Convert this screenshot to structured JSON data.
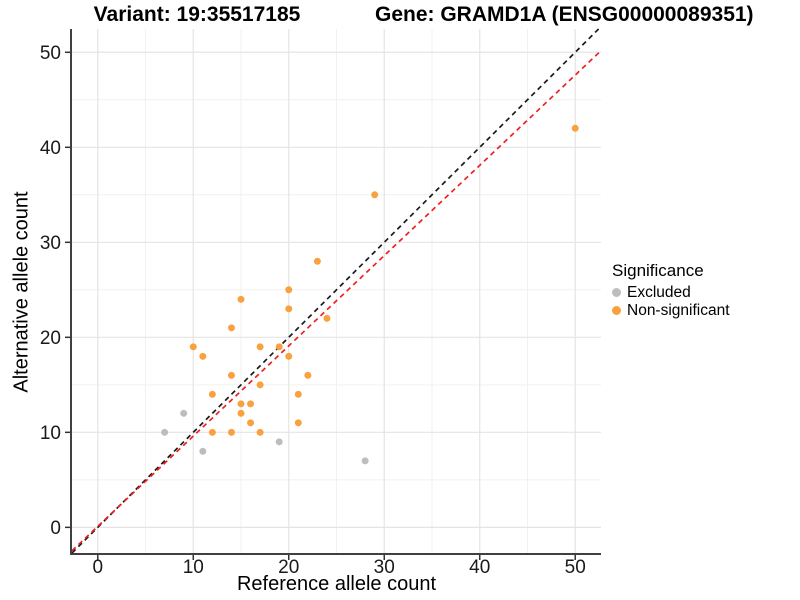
{
  "header": {
    "title_left": "Variant: 19:35517185",
    "title_right": "Gene: GRAMD1A (ENSG00000089351)"
  },
  "axes": {
    "x_label": "Reference allele count",
    "y_label": "Alternative allele count"
  },
  "legend": {
    "title": "Significance",
    "items": [
      {
        "label": "Excluded",
        "color": "#BDBDBD"
      },
      {
        "label": "Non-significant",
        "color": "#F8A13E"
      }
    ]
  },
  "chart_data": {
    "type": "scatter",
    "xlabel": "Reference allele count",
    "ylabel": "Alternative allele count",
    "xlim": [
      -2.7,
      52.7
    ],
    "ylim": [
      -2.7,
      52.45
    ],
    "x_ticks": [
      0,
      10,
      20,
      30,
      40,
      50
    ],
    "y_ticks": [
      0,
      10,
      20,
      30,
      40,
      50
    ],
    "x_minor_ticks": [
      5,
      15,
      25,
      35,
      45
    ],
    "y_minor_ticks": [
      5,
      15,
      25,
      35,
      45
    ],
    "grid": {
      "major_color": "#E4E4E4",
      "minor_color": "#F1F1F1",
      "grid_on": true
    },
    "axis_line_color": "#404040",
    "tick_label_color": "#1A1A1A",
    "legend_position": "right",
    "series": [
      {
        "name": "Excluded",
        "color": "#BDBDBD",
        "points": [
          [
            7,
            10
          ],
          [
            9,
            12
          ],
          [
            11,
            8
          ],
          [
            19,
            9
          ],
          [
            28,
            7
          ]
        ]
      },
      {
        "name": "Non-significant",
        "color": "#F8A13E",
        "points": [
          [
            10,
            19
          ],
          [
            11,
            18
          ],
          [
            12,
            10
          ],
          [
            12,
            14
          ],
          [
            14,
            10
          ],
          [
            14,
            16
          ],
          [
            14,
            21
          ],
          [
            15,
            12
          ],
          [
            15,
            13
          ],
          [
            15,
            24
          ],
          [
            16,
            11
          ],
          [
            16,
            13
          ],
          [
            17,
            10
          ],
          [
            17,
            15
          ],
          [
            17,
            19
          ],
          [
            19,
            19
          ],
          [
            20,
            18
          ],
          [
            20,
            23
          ],
          [
            20,
            25
          ],
          [
            21,
            11
          ],
          [
            21,
            14
          ],
          [
            22,
            16
          ],
          [
            23,
            28
          ],
          [
            24,
            22
          ],
          [
            29,
            35
          ],
          [
            50,
            42
          ]
        ]
      }
    ],
    "lines": [
      {
        "name": "identity-line",
        "slope": 1,
        "intercept": 0,
        "color": "#1A1A1A",
        "dash": "5 4"
      },
      {
        "name": "fit-line",
        "slope": 0.95,
        "intercept": 0.1,
        "color": "#F02020",
        "dash": "5 4"
      }
    ]
  }
}
